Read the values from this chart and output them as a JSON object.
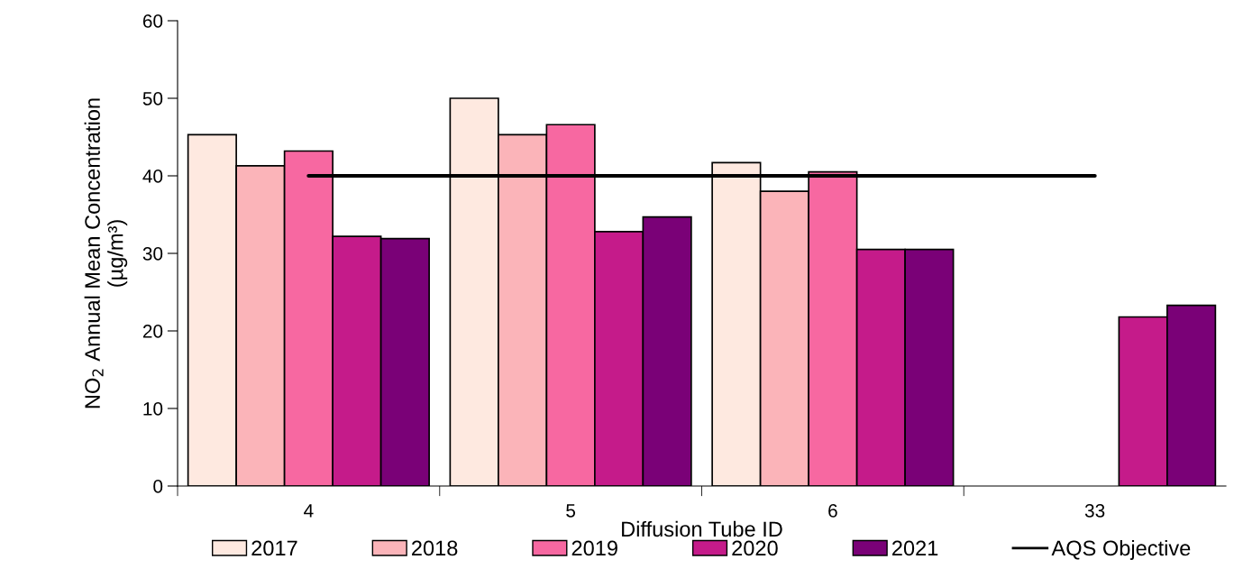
{
  "chart_data": {
    "type": "bar",
    "xlabel": "Diffusion Tube ID",
    "ylabel": "NO$_{2}$ Annual Mean Concentration (µg/m³)",
    "categories": [
      "4",
      "5",
      "6",
      "33"
    ],
    "series": [
      {
        "name": "2017",
        "color": "#fee9e0",
        "values": [
          45.3,
          50.0,
          41.7,
          null
        ]
      },
      {
        "name": "2018",
        "color": "#fbb4b9",
        "values": [
          41.3,
          45.3,
          38.0,
          null
        ]
      },
      {
        "name": "2019",
        "color": "#f768a1",
        "values": [
          43.2,
          46.6,
          40.5,
          null
        ]
      },
      {
        "name": "2020",
        "color": "#c51b8a",
        "values": [
          32.2,
          32.8,
          30.5,
          21.8
        ]
      },
      {
        "name": "2021",
        "color": "#7a0177",
        "values": [
          31.9,
          34.7,
          30.5,
          23.3
        ]
      },
      {
        "name": "AQS Objective",
        "color": "#000000",
        "type": "line",
        "values": [
          40,
          40,
          40,
          40
        ]
      }
    ],
    "ylim": [
      0,
      60
    ],
    "yticks": [
      0,
      10,
      20,
      30,
      40,
      50,
      60
    ],
    "grid": false,
    "legend": "bottom"
  }
}
